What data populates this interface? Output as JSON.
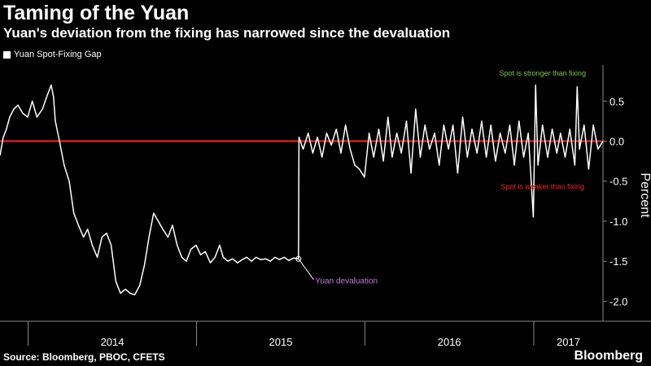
{
  "header": {
    "title": "Taming of the Yuan",
    "subtitle": "Yuan's deviation from the fixing has narrowed since the devaluation"
  },
  "footer": {
    "source": "Source: Bloomberg, PBOC, CFETS",
    "brand": "Bloomberg"
  },
  "colors": {
    "background": "#000000",
    "series": "#ffffff",
    "zero_line": "#ff2020",
    "axis": "#888888",
    "annotation_stronger": "#7cc63f",
    "annotation_weaker": "#ff2020",
    "annotation_devaluation": "#c27bd6"
  },
  "chart_data": {
    "type": "line",
    "title": "Taming of the Yuan",
    "subtitle": "Yuan's deviation from the fixing has narrowed since the devaluation",
    "ylabel": "Percent",
    "xlabel": "",
    "ylim": [
      -2.25,
      0.95
    ],
    "xlim": [
      "2013-11-01",
      "2017-05-31"
    ],
    "yticks": [
      0.5,
      0.0,
      -0.5,
      -1.0,
      -1.5,
      -2.0
    ],
    "ytick_labels": [
      "0.5",
      "0.0",
      "-0.5",
      "-1.0",
      "-1.5",
      "-2.0"
    ],
    "xtick_labels": [
      "2014",
      "2015",
      "2016",
      "2017"
    ],
    "reference_line": {
      "value": 0.0,
      "color": "#ff2020"
    },
    "legend": [
      "Yuan Spot-Fixing Gap"
    ],
    "legend_position": "top-left",
    "grid": false,
    "annotations": [
      {
        "text": "Spot is stronger than fixing",
        "date": "2017-01-20",
        "value": 0.82,
        "color": "#7cc63f"
      },
      {
        "text": "Spot is weaker than fixing",
        "date": "2017-01-20",
        "value": -0.6,
        "color": "#ff2020"
      },
      {
        "text": "Yuan devaluation",
        "date": "2015-08-11",
        "value": -1.78,
        "color": "#c27bd6",
        "marker_date": "2015-08-10",
        "marker_value": -1.47
      }
    ],
    "series": [
      {
        "name": "Yuan Spot-Fixing Gap",
        "color": "#ffffff",
        "points": [
          [
            "2013-11-01",
            -0.18
          ],
          [
            "2013-11-08",
            0.05
          ],
          [
            "2013-11-15",
            0.15
          ],
          [
            "2013-11-22",
            0.3
          ],
          [
            "2013-12-01",
            0.4
          ],
          [
            "2013-12-10",
            0.45
          ],
          [
            "2013-12-20",
            0.35
          ],
          [
            "2013-12-31",
            0.3
          ],
          [
            "2014-01-10",
            0.5
          ],
          [
            "2014-01-20",
            0.3
          ],
          [
            "2014-02-01",
            0.4
          ],
          [
            "2014-02-10",
            0.55
          ],
          [
            "2014-02-20",
            0.7
          ],
          [
            "2014-02-25",
            0.55
          ],
          [
            "2014-03-01",
            0.25
          ],
          [
            "2014-03-10",
            0.0
          ],
          [
            "2014-03-20",
            -0.3
          ],
          [
            "2014-03-31",
            -0.5
          ],
          [
            "2014-04-10",
            -0.9
          ],
          [
            "2014-04-20",
            -1.05
          ],
          [
            "2014-05-01",
            -1.2
          ],
          [
            "2014-05-10",
            -1.1
          ],
          [
            "2014-05-20",
            -1.3
          ],
          [
            "2014-05-31",
            -1.45
          ],
          [
            "2014-06-10",
            -1.2
          ],
          [
            "2014-06-20",
            -1.15
          ],
          [
            "2014-06-30",
            -1.3
          ],
          [
            "2014-07-10",
            -1.75
          ],
          [
            "2014-07-20",
            -1.9
          ],
          [
            "2014-07-31",
            -1.85
          ],
          [
            "2014-08-10",
            -1.9
          ],
          [
            "2014-08-20",
            -1.92
          ],
          [
            "2014-08-31",
            -1.8
          ],
          [
            "2014-09-10",
            -1.55
          ],
          [
            "2014-09-20",
            -1.2
          ],
          [
            "2014-09-30",
            -0.9
          ],
          [
            "2014-10-10",
            -1.0
          ],
          [
            "2014-10-20",
            -1.1
          ],
          [
            "2014-10-31",
            -1.2
          ],
          [
            "2014-11-10",
            -1.05
          ],
          [
            "2014-11-20",
            -1.3
          ],
          [
            "2014-11-30",
            -1.45
          ],
          [
            "2014-12-10",
            -1.5
          ],
          [
            "2014-12-20",
            -1.35
          ],
          [
            "2014-12-31",
            -1.3
          ],
          [
            "2015-01-10",
            -1.42
          ],
          [
            "2015-01-20",
            -1.38
          ],
          [
            "2015-01-31",
            -1.52
          ],
          [
            "2015-02-10",
            -1.45
          ],
          [
            "2015-02-20",
            -1.3
          ],
          [
            "2015-02-28",
            -1.45
          ],
          [
            "2015-03-10",
            -1.5
          ],
          [
            "2015-03-20",
            -1.47
          ],
          [
            "2015-03-31",
            -1.52
          ],
          [
            "2015-04-10",
            -1.48
          ],
          [
            "2015-04-20",
            -1.45
          ],
          [
            "2015-04-30",
            -1.5
          ],
          [
            "2015-05-10",
            -1.45
          ],
          [
            "2015-05-20",
            -1.48
          ],
          [
            "2015-05-31",
            -1.47
          ],
          [
            "2015-06-10",
            -1.5
          ],
          [
            "2015-06-20",
            -1.45
          ],
          [
            "2015-06-30",
            -1.48
          ],
          [
            "2015-07-10",
            -1.45
          ],
          [
            "2015-07-20",
            -1.49
          ],
          [
            "2015-07-31",
            -1.46
          ],
          [
            "2015-08-10",
            -1.47
          ],
          [
            "2015-08-11",
            0.05
          ],
          [
            "2015-08-20",
            -0.1
          ],
          [
            "2015-08-31",
            0.1
          ],
          [
            "2015-09-10",
            -0.15
          ],
          [
            "2015-09-20",
            0.05
          ],
          [
            "2015-09-30",
            -0.2
          ],
          [
            "2015-10-10",
            0.1
          ],
          [
            "2015-10-20",
            -0.05
          ],
          [
            "2015-10-31",
            0.15
          ],
          [
            "2015-11-10",
            -0.15
          ],
          [
            "2015-11-20",
            0.2
          ],
          [
            "2015-11-30",
            -0.1
          ],
          [
            "2015-12-10",
            -0.3
          ],
          [
            "2015-12-20",
            -0.35
          ],
          [
            "2015-12-31",
            -0.45
          ],
          [
            "2016-01-10",
            0.1
          ],
          [
            "2016-01-20",
            -0.2
          ],
          [
            "2016-01-31",
            0.15
          ],
          [
            "2016-02-10",
            -0.25
          ],
          [
            "2016-02-20",
            0.3
          ],
          [
            "2016-02-29",
            -0.2
          ],
          [
            "2016-03-10",
            0.1
          ],
          [
            "2016-03-20",
            -0.15
          ],
          [
            "2016-03-31",
            0.25
          ],
          [
            "2016-04-10",
            -0.4
          ],
          [
            "2016-04-20",
            0.4
          ],
          [
            "2016-04-30",
            -0.2
          ],
          [
            "2016-05-10",
            0.2
          ],
          [
            "2016-05-20",
            -0.1
          ],
          [
            "2016-05-31",
            0.1
          ],
          [
            "2016-06-10",
            -0.3
          ],
          [
            "2016-06-20",
            0.2
          ],
          [
            "2016-06-30",
            -0.1
          ],
          [
            "2016-07-10",
            0.2
          ],
          [
            "2016-07-20",
            -0.4
          ],
          [
            "2016-07-31",
            0.3
          ],
          [
            "2016-08-10",
            -0.2
          ],
          [
            "2016-08-20",
            0.15
          ],
          [
            "2016-08-31",
            -0.15
          ],
          [
            "2016-09-10",
            0.25
          ],
          [
            "2016-09-20",
            -0.2
          ],
          [
            "2016-09-30",
            0.2
          ],
          [
            "2016-10-10",
            -0.25
          ],
          [
            "2016-10-20",
            0.1
          ],
          [
            "2016-10-31",
            -0.15
          ],
          [
            "2016-11-10",
            0.2
          ],
          [
            "2016-11-20",
            -0.3
          ],
          [
            "2016-11-30",
            0.25
          ],
          [
            "2016-12-10",
            -0.2
          ],
          [
            "2016-12-20",
            0.1
          ],
          [
            "2016-12-31",
            -0.95
          ],
          [
            "2017-01-05",
            0.7
          ],
          [
            "2017-01-10",
            -0.3
          ],
          [
            "2017-01-20",
            0.2
          ],
          [
            "2017-01-31",
            -0.2
          ],
          [
            "2017-02-10",
            0.15
          ],
          [
            "2017-02-20",
            -0.15
          ],
          [
            "2017-02-28",
            0.1
          ],
          [
            "2017-03-10",
            -0.2
          ],
          [
            "2017-03-20",
            0.15
          ],
          [
            "2017-03-31",
            -0.3
          ],
          [
            "2017-04-05",
            0.68
          ],
          [
            "2017-04-10",
            -0.1
          ],
          [
            "2017-04-20",
            0.2
          ],
          [
            "2017-04-30",
            -0.35
          ],
          [
            "2017-05-10",
            0.2
          ],
          [
            "2017-05-20",
            -0.1
          ],
          [
            "2017-05-31",
            0.0
          ]
        ]
      }
    ]
  }
}
